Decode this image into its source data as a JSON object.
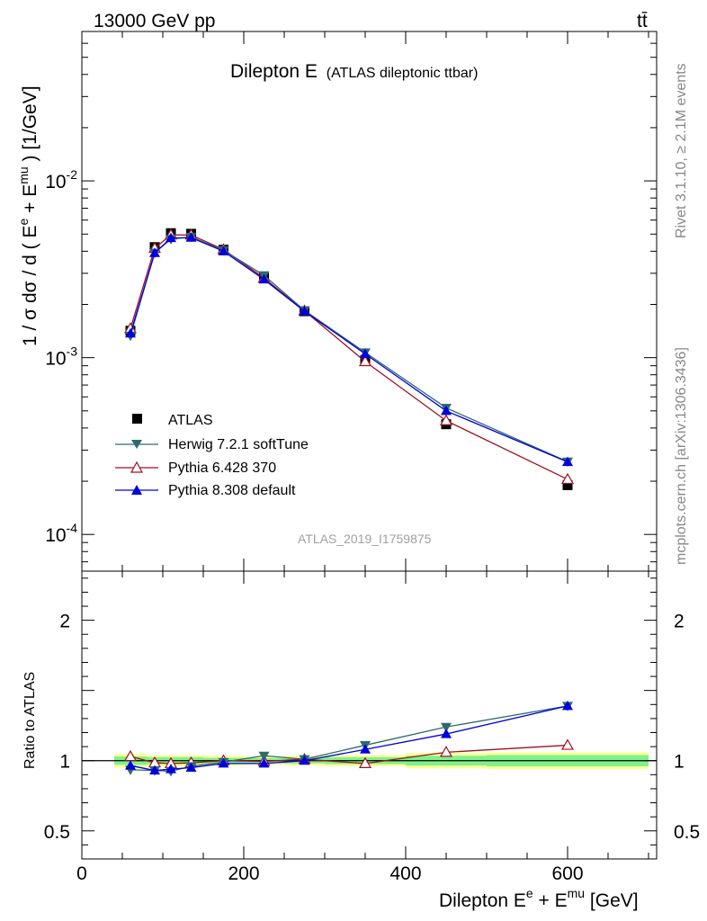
{
  "header": {
    "left": "13000 GeV pp",
    "right": "tt̄"
  },
  "side_labels": {
    "rivet": "Rivet 3.1.10, ≥ 2.1M events",
    "mcplots": "mcplots.cern.ch [arXiv:1306.3436]"
  },
  "main_title": {
    "text": "Dilepton E",
    "sub": "(ATLAS dileptonic ttbar)"
  },
  "watermark": "ATLAS_2019_I1759875",
  "axes": {
    "ylabel_main": "1 / σ  dσ / d ( E",
    "ylabel_main_e": "e",
    "ylabel_main_plus": " + E",
    "ylabel_main_mu": "mu",
    "ylabel_main_tail": " ) [1/GeV]",
    "ylabel_ratio": "Ratio to ATLAS",
    "xlabel_pre": "Dilepton E",
    "xlabel_e": "e",
    "xlabel_plus": " + E",
    "xlabel_mu": "mu",
    "xlabel_tail": " [GeV]"
  },
  "colors": {
    "data": "#000000",
    "herwig": "#2e6b6b",
    "pythia6": "#a01020",
    "pythia8": "#0000dd",
    "band_yellow": "#ffff99",
    "band_green": "#7ff28a"
  },
  "chart_data": {
    "type": "line",
    "x": [
      60,
      90,
      110,
      135,
      175,
      225,
      275,
      350,
      450,
      600
    ],
    "xlim": [
      0,
      710
    ],
    "ylim_main": [
      6.2e-05,
      0.07
    ],
    "yscale_main": "log",
    "ylim_ratio": [
      0.3,
      2.35
    ],
    "x_ticks": [
      "0",
      "200",
      "400",
      "600"
    ],
    "y_ticks_main": [
      {
        "base": "10",
        "exp": "-2",
        "value": 0.01
      },
      {
        "base": "10",
        "exp": "-3",
        "value": 0.001
      },
      {
        "base": "10",
        "exp": "-4",
        "value": 0.0001
      }
    ],
    "y_ticks_ratio": [
      "2",
      "1",
      "0.5"
    ],
    "legend": {
      "placement": "lower-left",
      "entries": [
        "ATLAS",
        "Herwig 7.2.1 softTune",
        "Pythia 6.428 370",
        "Pythia 8.308 default"
      ]
    },
    "series": [
      {
        "name": "ATLAS",
        "marker": "square",
        "values": [
          0.00142,
          0.00422,
          0.00506,
          0.00502,
          0.00408,
          0.00283,
          0.00183,
          0.00097,
          0.00042,
          0.00019
        ]
      },
      {
        "name": "Herwig 7.2.1 softTune",
        "marker": "triangle-down",
        "values": [
          0.00133,
          0.00392,
          0.00468,
          0.00482,
          0.00405,
          0.00292,
          0.00185,
          0.00107,
          0.00052,
          0.000258
        ],
        "ratio": [
          0.935,
          0.93,
          0.925,
          0.96,
          0.99,
          1.035,
          1.01,
          1.11,
          1.24,
          1.39
        ]
      },
      {
        "name": "Pythia 6.428 370",
        "marker": "triangle-open",
        "values": [
          0.00146,
          0.00416,
          0.00495,
          0.00494,
          0.00409,
          0.00282,
          0.00184,
          0.00095,
          0.00044,
          0.000205
        ],
        "ratio": [
          1.03,
          0.985,
          0.98,
          0.985,
          1.0,
          0.995,
          1.01,
          0.98,
          1.06,
          1.11
        ]
      },
      {
        "name": "Pythia 8.308 default",
        "marker": "triangle-up",
        "values": [
          0.00137,
          0.00391,
          0.00475,
          0.00477,
          0.004,
          0.00277,
          0.00183,
          0.00105,
          0.0005,
          0.000257
        ],
        "ratio": [
          0.965,
          0.93,
          0.94,
          0.95,
          0.98,
          0.98,
          1.0,
          1.08,
          1.19,
          1.39
        ]
      }
    ],
    "ratio_band": {
      "x_edges": [
        40,
        80,
        100,
        120,
        150,
        200,
        250,
        300,
        400,
        500,
        700
      ],
      "yellow_half": [
        0.05,
        0.04,
        0.04,
        0.04,
        0.035,
        0.03,
        0.035,
        0.04,
        0.055,
        0.06
      ],
      "green_half": [
        0.03,
        0.025,
        0.025,
        0.025,
        0.02,
        0.018,
        0.02,
        0.025,
        0.035,
        0.04
      ]
    }
  }
}
